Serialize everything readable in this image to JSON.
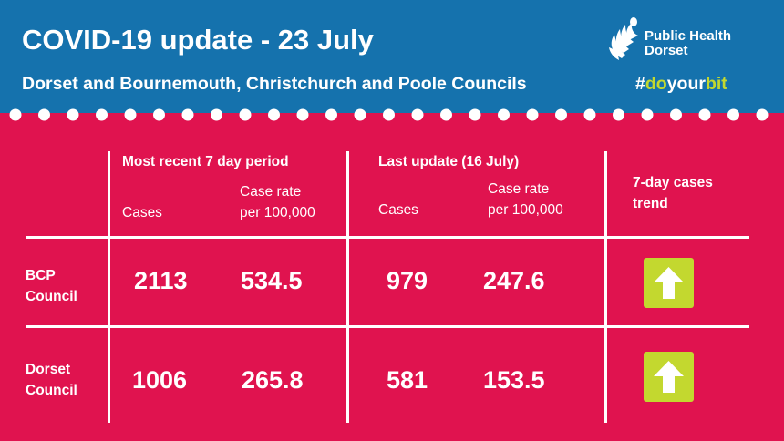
{
  "header": {
    "title": "COVID-19 update - 23 July",
    "subtitle": "Dorset and Bournemouth, Christchurch and Poole Councils",
    "hashtag_prefix": "#",
    "hashtag_highlight_1": "do",
    "hashtag_middle": "your",
    "hashtag_highlight_2": "bit",
    "logo_line1": "Public Health",
    "logo_line2": "Dorset"
  },
  "table": {
    "group_recent": "Most recent 7 day period",
    "group_last": "Last update (16 July)",
    "col_cases": "Cases",
    "col_rate_line1": "Case rate",
    "col_rate_line2": "per 100,000",
    "col_trend_line1": "7-day cases",
    "col_trend_line2": "trend",
    "rows": [
      {
        "label_line1": "BCP",
        "label_line2": "Council",
        "recent_cases": "2113",
        "recent_rate": "534.5",
        "last_cases": "979",
        "last_rate": "247.6",
        "trend": "up"
      },
      {
        "label_line1": "Dorset",
        "label_line2": "Council",
        "recent_cases": "1006",
        "recent_rate": "265.8",
        "last_cases": "581",
        "last_rate": "153.5",
        "trend": "up"
      }
    ]
  },
  "colors": {
    "header_blue": "#1572ad",
    "background_pink": "#e0134f",
    "accent_green": "#c3d82f",
    "text": "#ffffff"
  },
  "icons": {
    "logo": "public-health-dorset-logo-icon",
    "trend": "up-arrow-icon"
  }
}
